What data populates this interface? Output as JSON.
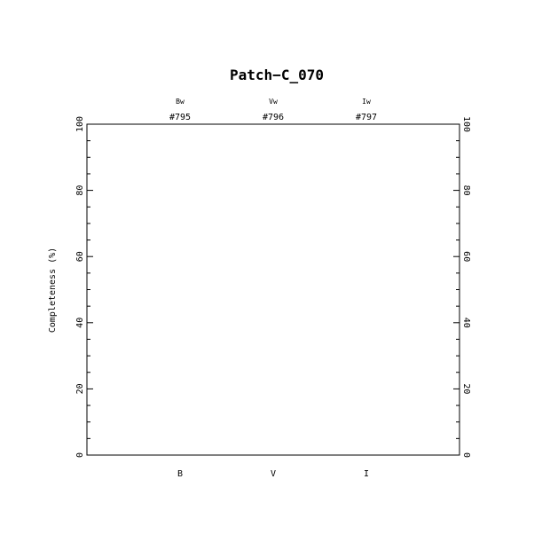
{
  "chart_data": {
    "type": "bar",
    "title": "Patch−C_070",
    "xlabel": "",
    "ylabel": "Completeness (%)",
    "categories": [
      "B",
      "V",
      "I"
    ],
    "top_labels": [
      {
        "filter": "Bw",
        "id": "#795"
      },
      {
        "filter": "Vw",
        "id": "#796"
      },
      {
        "filter": "Iw",
        "id": "#797"
      }
    ],
    "series": [],
    "ylim": [
      0,
      100
    ],
    "xlim": [
      0,
      4
    ],
    "yticks": [
      0,
      20,
      40,
      60,
      80,
      100
    ],
    "yticks_minor_step": 5,
    "grid": false,
    "legend": "none"
  }
}
